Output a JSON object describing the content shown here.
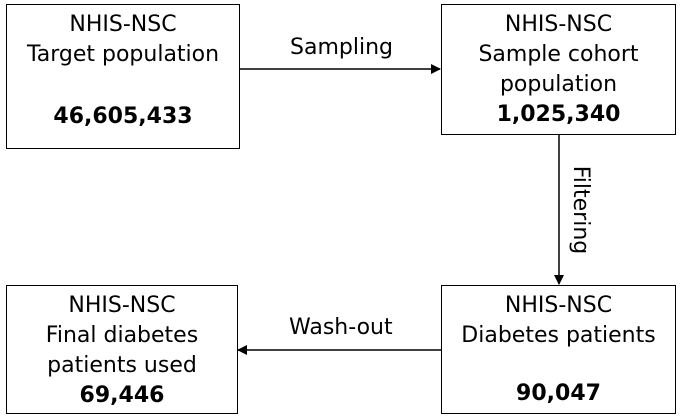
{
  "boxes": {
    "target": {
      "title": "NHIS-NSC",
      "subtitle": "Target population",
      "count": "46,605,433"
    },
    "sample": {
      "title": "NHIS-NSC",
      "line2": "Sample cohort",
      "line3": "population",
      "count": "1,025,340"
    },
    "diabetes": {
      "title": "NHIS-NSC",
      "subtitle": "Diabetes patients",
      "count": "90,047"
    },
    "final": {
      "title": "NHIS-NSC",
      "line2": "Final diabetes",
      "line3": "patients used",
      "count": "69,446"
    }
  },
  "edges": {
    "sampling": "Sampling",
    "filtering": "Filtering",
    "washout": "Wash-out"
  }
}
